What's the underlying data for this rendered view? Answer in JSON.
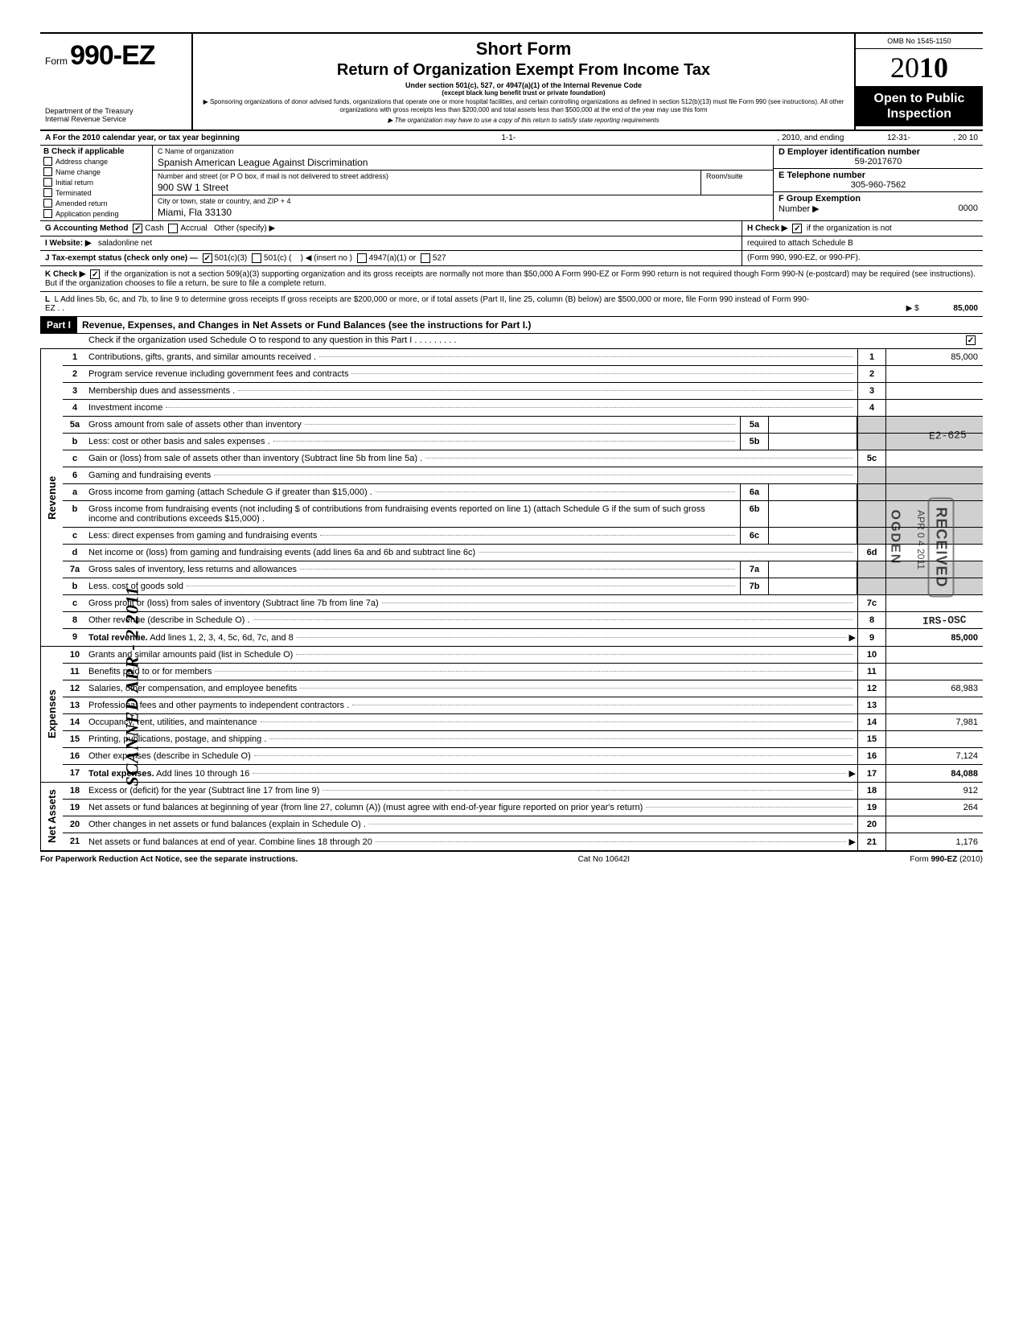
{
  "header": {
    "form_label": "Form",
    "form_number": "990-EZ",
    "dept": "Department of the Treasury",
    "irs": "Internal Revenue Service",
    "short_form": "Short Form",
    "title": "Return of Organization Exempt From Income Tax",
    "under": "Under section 501(c), 527, or 4947(a)(1) of the Internal Revenue Code",
    "except": "(except black lung benefit trust or private foundation)",
    "sponsor": "▶ Sponsoring organizations of donor advised funds, organizations that operate one or more hospital facilities, and certain controlling organizations as defined in section 512(b)(13) must file Form 990 (see instructions). All other organizations with gross receipts less than $200,000 and total assets less than $500,000 at the end of the year may use this form",
    "copy": "▶ The organization may have to use a copy of this return to satisfy state reporting requirements",
    "omb": "OMB No 1545-1150",
    "year_prefix": "20",
    "year_suffix": "10",
    "open1": "Open to Public",
    "open2": "Inspection"
  },
  "section_a": {
    "a_text": "A  For the 2010 calendar year, or tax year beginning",
    "begin": "1-1-",
    "mid": ", 2010, and ending",
    "end": "12-31-",
    "end_year": ", 20    10",
    "b_head": "B  Check if applicable",
    "checks": [
      "Address change",
      "Name change",
      "Initial return",
      "Terminated",
      "Amended return",
      "Application pending"
    ],
    "c_label": "C  Name of organization",
    "c_value": "Spanish American League Against Discrimination",
    "addr_label": "Number and street (or P O  box, if mail is not delivered to street address)",
    "room": "Room/suite",
    "addr_value": "900 SW 1 Street",
    "city_label": "City or town, state or country, and ZIP + 4",
    "city_value": "Miami, Fla  33130",
    "d_label": "D Employer identification number",
    "d_value": "59-2017670",
    "e_label": "E  Telephone number",
    "e_value": "305-960-7562",
    "f_label": "F  Group Exemption",
    "f_label2": "Number ▶",
    "f_value": "0000"
  },
  "rows_ghijkl": {
    "g": "G  Accounting Method",
    "g_cash": "Cash",
    "g_accrual": "Accrual",
    "g_other": "Other (specify) ▶",
    "h": "H  Check ▶",
    "h_text": "if the organization is not",
    "h_text2": "required to attach Schedule B",
    "h_text3": "(Form 990, 990-EZ, or 990-PF).",
    "i": "I   Website: ▶",
    "i_value": "saladonline net",
    "j": "J  Tax-exempt status (check only one) —",
    "j_1": "501(c)(3)",
    "j_2": "501(c) (",
    "j_2b": ")  ◀ (insert no )",
    "j_3": "4947(a)(1) or",
    "j_4": "527",
    "k": "K  Check ▶",
    "k_text": "if the organization is not a section 509(a)(3) supporting organization and its gross receipts are normally not more than $50,000  A Form 990-EZ or Form 990 return is not required though Form 990-N (e-postcard) may be required (see instructions). But if the organization chooses to file a return, be sure to file a complete return.",
    "l": "L  Add lines 5b, 6c, and 7b, to line 9 to determine gross receipts  If gross receipts are $200,000 or more, or if total assets (Part II, line  25, column (B) below) are $500,000 or more, file Form 990 instead of Form 990-EZ   .    .",
    "l_arrow": "▶  $",
    "l_value": "85,000"
  },
  "part1": {
    "label": "Part I",
    "title": "Revenue, Expenses, and Changes in Net Assets or Fund Balances (see the instructions for Part I.)",
    "sub": "Check if the organization used Schedule O to respond to any question in this Part I  .   .   .   .   .   .   .   .   ."
  },
  "revenue": {
    "side": "Revenue",
    "lines": [
      {
        "n": "1",
        "t": "Contributions, gifts, grants, and similar amounts received .",
        "rn": "1",
        "amt": "85,000"
      },
      {
        "n": "2",
        "t": "Program service revenue including government fees and contracts",
        "rn": "2",
        "amt": ""
      },
      {
        "n": "3",
        "t": "Membership dues and assessments .",
        "rn": "3",
        "amt": ""
      },
      {
        "n": "4",
        "t": "Investment income",
        "rn": "4",
        "amt": ""
      },
      {
        "n": "5a",
        "t": "Gross amount from sale of assets other than inventory",
        "sn": "5a"
      },
      {
        "n": "b",
        "t": "Less: cost or other basis and sales expenses .",
        "sn": "5b"
      },
      {
        "n": "c",
        "t": "Gain or (loss) from sale of assets other than inventory (Subtract line 5b from line 5a) .",
        "rn": "5c",
        "amt": ""
      },
      {
        "n": "6",
        "t": "Gaming and fundraising events"
      },
      {
        "n": "a",
        "t": "Gross income from gaming (attach Schedule G if greater than $15,000) .",
        "sn": "6a"
      },
      {
        "n": "b",
        "t": "Gross income from fundraising events (not including $                      of contributions from fundraising events reported on line 1) (attach Schedule G if the sum of such gross income and contributions exceeds $15,000) .",
        "sn": "6b"
      },
      {
        "n": "c",
        "t": "Less: direct expenses from gaming and fundraising events",
        "sn": "6c"
      },
      {
        "n": "d",
        "t": "Net income or (loss) from gaming and fundraising events (add lines 6a and 6b and subtract line 6c)",
        "rn": "6d",
        "amt": ""
      },
      {
        "n": "7a",
        "t": "Gross sales of inventory, less returns and allowances",
        "sn": "7a"
      },
      {
        "n": "b",
        "t": "Less. cost of goods sold",
        "sn": "7b"
      },
      {
        "n": "c",
        "t": "Gross profit or (loss) from sales of inventory (Subtract line 7b from line 7a)",
        "rn": "7c",
        "amt": ""
      },
      {
        "n": "8",
        "t": "Other revenue (describe in Schedule O) .",
        "rn": "8",
        "amt": ""
      },
      {
        "n": "9",
        "t": "Total revenue. Add lines 1, 2, 3, 4, 5c, 6d, 7c, and 8",
        "rn": "9",
        "amt": "85,000",
        "bold": true,
        "arrow": true
      }
    ]
  },
  "expenses": {
    "side": "Expenses",
    "lines": [
      {
        "n": "10",
        "t": "Grants and similar amounts paid (list in Schedule O)",
        "rn": "10",
        "amt": ""
      },
      {
        "n": "11",
        "t": "Benefits paid to or for members",
        "rn": "11",
        "amt": ""
      },
      {
        "n": "12",
        "t": "Salaries, other compensation, and employee benefits",
        "rn": "12",
        "amt": "68,983"
      },
      {
        "n": "13",
        "t": "Professional fees and other payments to independent contractors .",
        "rn": "13",
        "amt": ""
      },
      {
        "n": "14",
        "t": "Occupancy, rent, utilities, and maintenance",
        "rn": "14",
        "amt": "7,981"
      },
      {
        "n": "15",
        "t": "Printing, publications, postage, and shipping .",
        "rn": "15",
        "amt": ""
      },
      {
        "n": "16",
        "t": "Other expenses (describe in Schedule O)",
        "rn": "16",
        "amt": "7,124"
      },
      {
        "n": "17",
        "t": "Total expenses. Add lines 10 through 16",
        "rn": "17",
        "amt": "84,088",
        "bold": true,
        "arrow": true
      }
    ]
  },
  "netassets": {
    "side": "Net Assets",
    "lines": [
      {
        "n": "18",
        "t": "Excess or (deficit) for the year (Subtract line 17 from line 9)",
        "rn": "18",
        "amt": "912"
      },
      {
        "n": "19",
        "t": "Net assets or fund balances at beginning of year (from line 27, column (A)) (must agree with end-of-year figure reported on prior year's return)",
        "rn": "19",
        "amt": "264"
      },
      {
        "n": "20",
        "t": "Other changes in net assets or fund balances (explain in Schedule O) .",
        "rn": "20",
        "amt": ""
      },
      {
        "n": "21",
        "t": "Net assets or fund balances at end of year. Combine lines 18 through 20",
        "rn": "21",
        "amt": "1,176",
        "arrow": true
      }
    ]
  },
  "footer": {
    "left": "For Paperwork Reduction Act Notice, see the separate instructions.",
    "mid": "Cat No  10642I",
    "right": "Form 990-EZ (2010)"
  },
  "stamps": {
    "e2": "E2-625",
    "irs_osc": "IRS-OSC",
    "received": "RECEIVED",
    "ogden": "OGDEN",
    "date": "APR 0 4 2011",
    "scanned": "SCANNED APR - 2 2011"
  },
  "colors": {
    "black": "#000000",
    "shade": "#d0d0d0",
    "bg": "#ffffff"
  }
}
